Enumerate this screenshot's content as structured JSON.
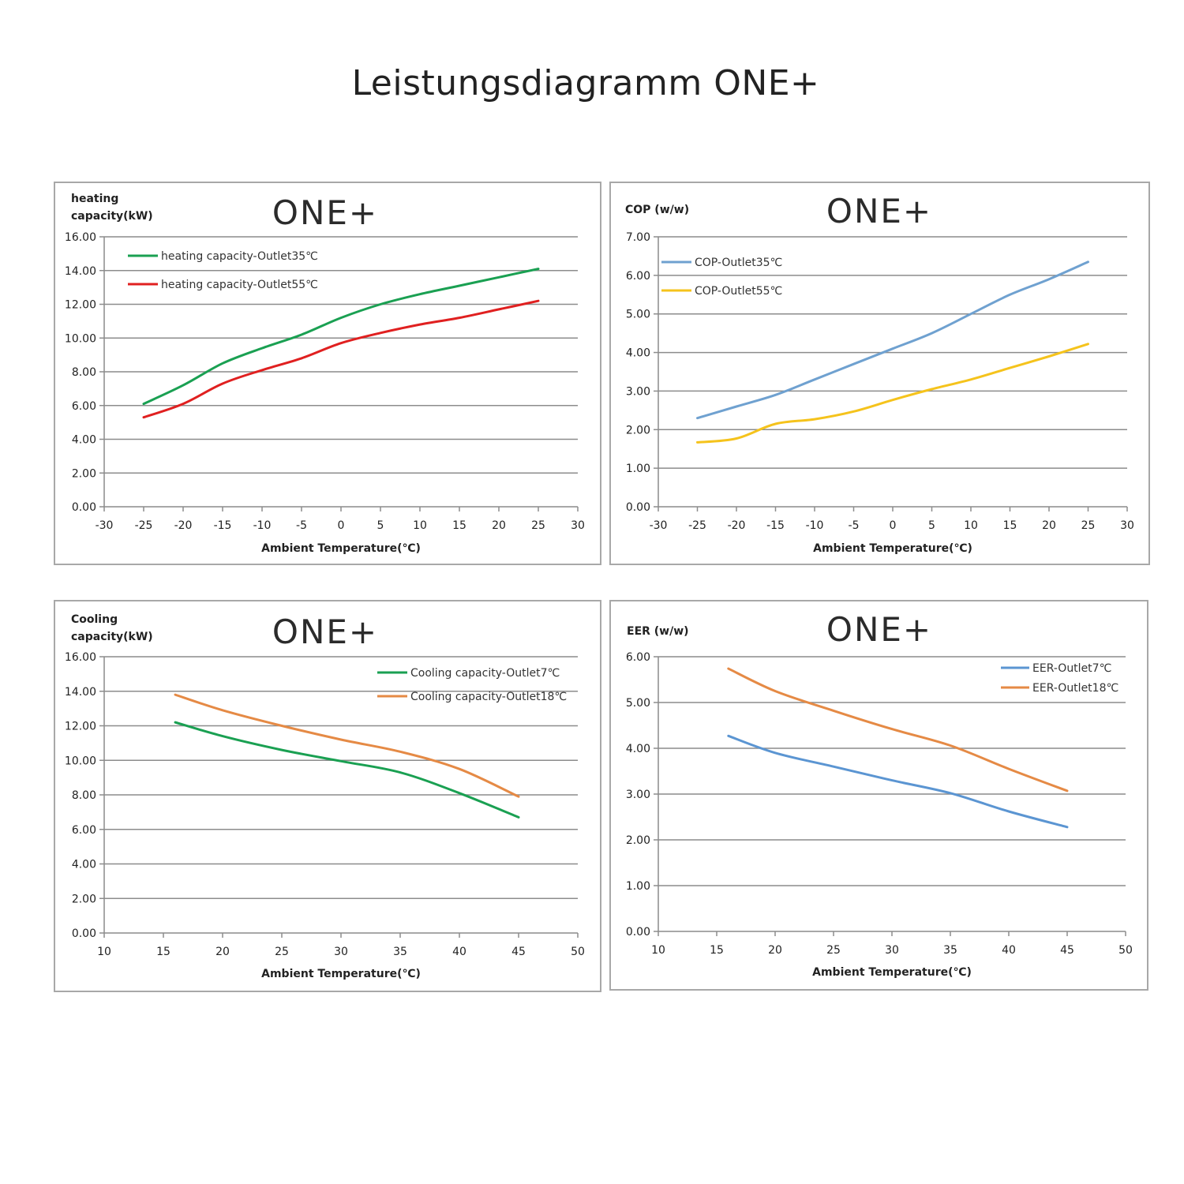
{
  "page": {
    "title": "Leistungsdiagramm ONE+"
  },
  "brand": "ONE+",
  "chart_data": [
    {
      "type": "line",
      "ylabel_lines": [
        "heating",
        "capacity(kW)"
      ],
      "xlabel": "Ambient Temperature(℃)",
      "xlim": [
        -30,
        30
      ],
      "xticks": [
        -30,
        -25,
        -20,
        -15,
        -10,
        -5,
        0,
        5,
        10,
        15,
        20,
        25,
        30
      ],
      "ylim": [
        0,
        16
      ],
      "yticks": [
        0,
        2,
        4,
        6,
        8,
        10,
        12,
        14,
        16
      ],
      "ytick_decimals": 2,
      "grid": true,
      "legend_position": "top-left",
      "series": [
        {
          "name": "heating capacity-Outlet35℃",
          "color": "#1aa052",
          "points": [
            [
              -25,
              6.1
            ],
            [
              -20,
              7.2
            ],
            [
              -15,
              8.5
            ],
            [
              -10,
              9.4
            ],
            [
              -5,
              10.2
            ],
            [
              0,
              11.2
            ],
            [
              5,
              12.0
            ],
            [
              10,
              12.6
            ],
            [
              15,
              13.1
            ],
            [
              20,
              13.6
            ],
            [
              25,
              14.1
            ]
          ]
        },
        {
          "name": "heating capacity-Outlet55℃",
          "color": "#e02020",
          "points": [
            [
              -25,
              5.3
            ],
            [
              -20,
              6.1
            ],
            [
              -15,
              7.3
            ],
            [
              -10,
              8.1
            ],
            [
              -5,
              8.8
            ],
            [
              0,
              9.7
            ],
            [
              5,
              10.3
            ],
            [
              10,
              10.8
            ],
            [
              15,
              11.2
            ],
            [
              20,
              11.7
            ],
            [
              25,
              12.2
            ]
          ]
        }
      ]
    },
    {
      "type": "line",
      "ylabel_lines": [
        "COP (w/w)"
      ],
      "xlabel": "Ambient Temperature(℃)",
      "xlim": [
        -30,
        30
      ],
      "xticks": [
        -30,
        -25,
        -20,
        -15,
        -10,
        -5,
        0,
        5,
        10,
        15,
        20,
        25,
        30
      ],
      "ylim": [
        0,
        7
      ],
      "yticks": [
        0,
        1,
        2,
        3,
        4,
        5,
        6,
        7
      ],
      "ytick_decimals": 2,
      "grid": true,
      "legend_position": "top-left",
      "series": [
        {
          "name": "COP-Outlet35℃",
          "color": "#6fa1d0",
          "points": [
            [
              -25,
              2.3
            ],
            [
              -20,
              2.6
            ],
            [
              -15,
              2.9
            ],
            [
              -10,
              3.3
            ],
            [
              -5,
              3.7
            ],
            [
              0,
              4.1
            ],
            [
              5,
              4.5
            ],
            [
              10,
              5.0
            ],
            [
              15,
              5.5
            ],
            [
              20,
              5.9
            ],
            [
              25,
              6.35
            ]
          ]
        },
        {
          "name": "COP-Outlet55℃",
          "color": "#f5c31c",
          "points": [
            [
              -25,
              1.67
            ],
            [
              -20,
              1.77
            ],
            [
              -15,
              2.15
            ],
            [
              -10,
              2.27
            ],
            [
              -5,
              2.47
            ],
            [
              0,
              2.77
            ],
            [
              5,
              3.05
            ],
            [
              10,
              3.3
            ],
            [
              15,
              3.6
            ],
            [
              20,
              3.9
            ],
            [
              25,
              4.22
            ]
          ]
        }
      ]
    },
    {
      "type": "line",
      "ylabel_lines": [
        "Cooling",
        "capacity(kW)"
      ],
      "xlabel": "Ambient Temperature(℃)",
      "xlim": [
        10,
        50
      ],
      "xticks": [
        10,
        15,
        20,
        25,
        30,
        35,
        40,
        45,
        50
      ],
      "ylim": [
        0,
        16
      ],
      "yticks": [
        0,
        2,
        4,
        6,
        8,
        10,
        12,
        14,
        16
      ],
      "ytick_decimals": 2,
      "grid": true,
      "legend_position": "top-right",
      "series": [
        {
          "name": "Cooling capacity-Outlet7℃",
          "color": "#1aa052",
          "points": [
            [
              16,
              12.2
            ],
            [
              20,
              11.4
            ],
            [
              25,
              10.6
            ],
            [
              30,
              9.95
            ],
            [
              35,
              9.3
            ],
            [
              40,
              8.1
            ],
            [
              45,
              6.7
            ]
          ]
        },
        {
          "name": "Cooling capacity-Outlet18℃",
          "color": "#e58a45",
          "points": [
            [
              16,
              13.8
            ],
            [
              20,
              12.9
            ],
            [
              25,
              12.0
            ],
            [
              30,
              11.2
            ],
            [
              35,
              10.5
            ],
            [
              40,
              9.5
            ],
            [
              45,
              7.9
            ]
          ]
        }
      ]
    },
    {
      "type": "line",
      "ylabel_lines": [
        "EER (w/w)"
      ],
      "xlabel": "Ambient Temperature(℃)",
      "xlim": [
        10,
        50
      ],
      "xticks": [
        10,
        15,
        20,
        25,
        30,
        35,
        40,
        45,
        50
      ],
      "ylim": [
        0,
        6
      ],
      "yticks": [
        0,
        1,
        2,
        3,
        4,
        5,
        6
      ],
      "ytick_decimals": 2,
      "grid": true,
      "legend_position": "top-right",
      "series": [
        {
          "name": "EER-Outlet7℃",
          "color": "#5b95d2",
          "points": [
            [
              16,
              4.27
            ],
            [
              20,
              3.9
            ],
            [
              25,
              3.6
            ],
            [
              30,
              3.3
            ],
            [
              35,
              3.02
            ],
            [
              40,
              2.62
            ],
            [
              45,
              2.28
            ]
          ]
        },
        {
          "name": "EER-Outlet18℃",
          "color": "#e58a45",
          "points": [
            [
              16,
              5.74
            ],
            [
              20,
              5.25
            ],
            [
              25,
              4.82
            ],
            [
              30,
              4.42
            ],
            [
              35,
              4.06
            ],
            [
              40,
              3.55
            ],
            [
              45,
              3.07
            ]
          ]
        }
      ]
    }
  ]
}
